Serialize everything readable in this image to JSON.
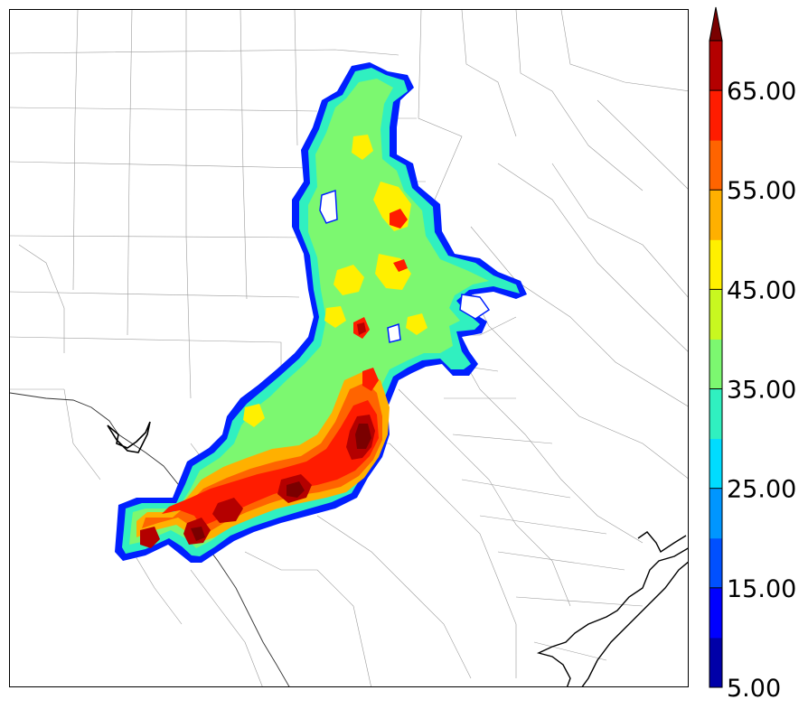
{
  "map": {
    "field_levels": [
      5,
      10,
      15,
      20,
      25,
      30,
      35,
      40,
      45,
      50,
      55,
      60,
      65,
      70
    ],
    "colors": {
      "water_coast": "#000000",
      "county_lines": "#9a9a9a",
      "state_border": "#333333",
      "background": "#ffffff"
    }
  },
  "colorbar": {
    "labels": [
      "5.00",
      "15.00",
      "25.00",
      "35.00",
      "45.00",
      "55.00",
      "65.00"
    ],
    "extend": "max",
    "colors": [
      "#0000a8",
      "#0000ff",
      "#0050ff",
      "#0096ff",
      "#00dcff",
      "#30f0c0",
      "#7cf870",
      "#c8f820",
      "#fff000",
      "#ffb000",
      "#ff6400",
      "#ff1c00",
      "#b40000",
      "#7a0000"
    ]
  }
}
